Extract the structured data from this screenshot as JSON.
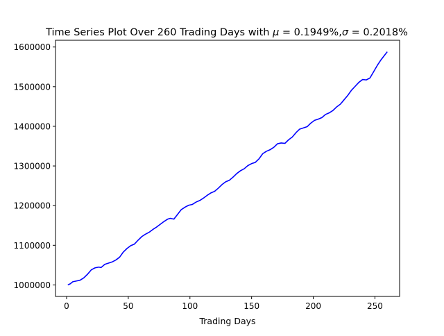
{
  "chart_data": {
    "type": "line",
    "title_prefix": "Time Series Plot Over 260 Trading Days with ",
    "title_mu_symbol": "μ",
    "title_mu_value": " = 0.1949%,",
    "title_sigma_symbol": "σ",
    "title_sigma_value": " = 0.2018%",
    "xlabel": "Trading Days",
    "ylabel": "",
    "xlim": [
      -9,
      270
    ],
    "ylim": [
      971000,
      1617000
    ],
    "xticks": [
      0,
      50,
      100,
      150,
      200,
      250
    ],
    "xtick_labels": [
      "0",
      "50",
      "100",
      "150",
      "200",
      "250"
    ],
    "yticks": [
      1000000,
      1100000,
      1200000,
      1300000,
      1400000,
      1500000,
      1600000
    ],
    "ytick_labels": [
      "1000000",
      "1100000",
      "1200000",
      "1300000",
      "1400000",
      "1500000",
      "1600000"
    ],
    "grid": false,
    "legend": "none",
    "series": [
      {
        "color": "#0000ff",
        "points": [
          [
            1,
            1000000
          ],
          [
            3,
            1003000
          ],
          [
            5,
            1008000
          ],
          [
            8,
            1010000
          ],
          [
            11,
            1012000
          ],
          [
            14,
            1018000
          ],
          [
            17,
            1027000
          ],
          [
            20,
            1038000
          ],
          [
            23,
            1043000
          ],
          [
            26,
            1045000
          ],
          [
            28,
            1044000
          ],
          [
            31,
            1052000
          ],
          [
            34,
            1055000
          ],
          [
            37,
            1058000
          ],
          [
            40,
            1063000
          ],
          [
            43,
            1070000
          ],
          [
            46,
            1083000
          ],
          [
            49,
            1092000
          ],
          [
            52,
            1099000
          ],
          [
            55,
            1103000
          ],
          [
            58,
            1113000
          ],
          [
            61,
            1122000
          ],
          [
            64,
            1128000
          ],
          [
            67,
            1133000
          ],
          [
            70,
            1140000
          ],
          [
            73,
            1146000
          ],
          [
            76,
            1153000
          ],
          [
            79,
            1160000
          ],
          [
            82,
            1166000
          ],
          [
            84,
            1168000
          ],
          [
            87,
            1166000
          ],
          [
            90,
            1178000
          ],
          [
            93,
            1190000
          ],
          [
            96,
            1196000
          ],
          [
            99,
            1201000
          ],
          [
            102,
            1203000
          ],
          [
            105,
            1209000
          ],
          [
            108,
            1213000
          ],
          [
            111,
            1219000
          ],
          [
            114,
            1226000
          ],
          [
            117,
            1232000
          ],
          [
            120,
            1236000
          ],
          [
            123,
            1244000
          ],
          [
            126,
            1253000
          ],
          [
            129,
            1260000
          ],
          [
            132,
            1264000
          ],
          [
            135,
            1272000
          ],
          [
            138,
            1281000
          ],
          [
            141,
            1288000
          ],
          [
            144,
            1293000
          ],
          [
            147,
            1301000
          ],
          [
            150,
            1306000
          ],
          [
            153,
            1309000
          ],
          [
            156,
            1318000
          ],
          [
            159,
            1331000
          ],
          [
            162,
            1337000
          ],
          [
            165,
            1341000
          ],
          [
            168,
            1347000
          ],
          [
            171,
            1356000
          ],
          [
            174,
            1358000
          ],
          [
            177,
            1357000
          ],
          [
            180,
            1366000
          ],
          [
            183,
            1373000
          ],
          [
            186,
            1384000
          ],
          [
            189,
            1393000
          ],
          [
            192,
            1396000
          ],
          [
            195,
            1399000
          ],
          [
            198,
            1408000
          ],
          [
            201,
            1415000
          ],
          [
            204,
            1418000
          ],
          [
            207,
            1422000
          ],
          [
            210,
            1430000
          ],
          [
            213,
            1434000
          ],
          [
            216,
            1440000
          ],
          [
            219,
            1449000
          ],
          [
            222,
            1456000
          ],
          [
            225,
            1467000
          ],
          [
            228,
            1478000
          ],
          [
            231,
            1491000
          ],
          [
            234,
            1501000
          ],
          [
            237,
            1511000
          ],
          [
            240,
            1518000
          ],
          [
            243,
            1517000
          ],
          [
            246,
            1522000
          ],
          [
            249,
            1538000
          ],
          [
            252,
            1554000
          ],
          [
            255,
            1568000
          ],
          [
            258,
            1580000
          ],
          [
            260,
            1588000
          ]
        ]
      }
    ]
  }
}
